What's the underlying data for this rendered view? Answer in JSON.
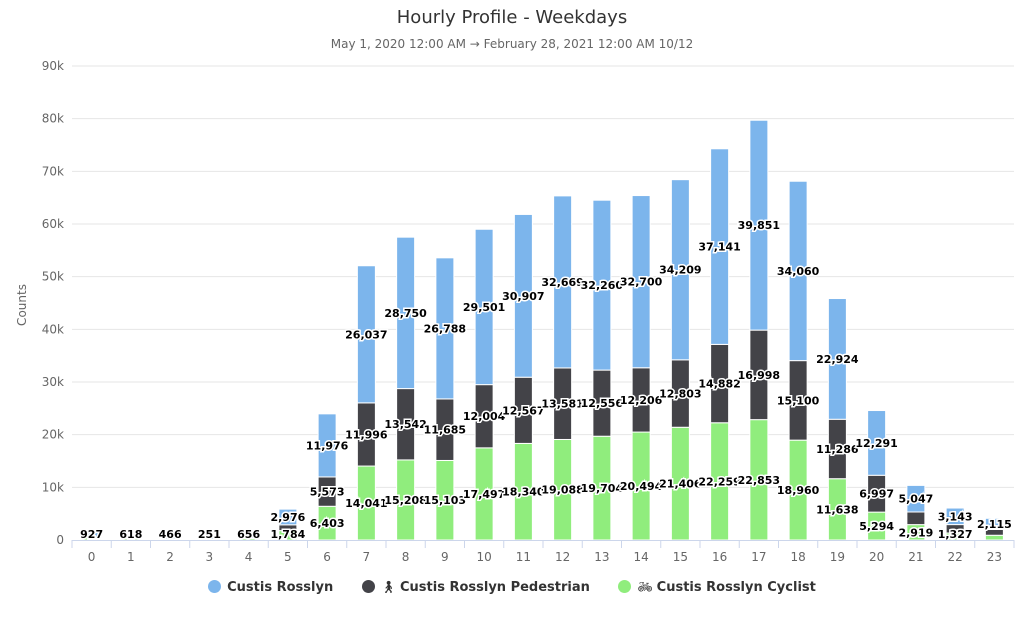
{
  "header": {
    "title": "Hourly Profile - Weekdays",
    "subtitle": "May 1, 2020 12:00 AM → February 28, 2021 12:00 AM 10/12"
  },
  "legend": [
    {
      "label": "Custis Rosslyn",
      "color": "#7cb5ec",
      "icon": ""
    },
    {
      "label": "Custis Rosslyn Pedestrian",
      "color": "#434348",
      "icon": "pedestrian-icon"
    },
    {
      "label": "Custis Rosslyn Cyclist",
      "color": "#90ed7d",
      "icon": "bicycle-icon"
    }
  ],
  "chart_data": {
    "type": "bar",
    "stacked": true,
    "title": "Hourly Profile - Weekdays",
    "subtitle": "May 1, 2020 12:00 AM → February 28, 2021 12:00 AM 10/12",
    "xlabel": "",
    "ylabel": "Counts",
    "ylim": [
      0,
      90000
    ],
    "yticks": [
      "0",
      "10k",
      "20k",
      "30k",
      "40k",
      "50k",
      "60k",
      "70k",
      "80k",
      "90k"
    ],
    "grid": true,
    "legend_position": "bottom",
    "categories": [
      "0",
      "1",
      "2",
      "3",
      "4",
      "5",
      "6",
      "7",
      "8",
      "9",
      "10",
      "11",
      "12",
      "13",
      "14",
      "15",
      "16",
      "17",
      "18",
      "19",
      "20",
      "21",
      "22",
      "23"
    ],
    "series": [
      {
        "name": "Custis Rosslyn Cyclist",
        "color": "#90ed7d",
        "values": [
          400,
          280,
          200,
          110,
          300,
          1784,
          6403,
          14041,
          15208,
          15103,
          17497,
          18340,
          19088,
          19704,
          20494,
          21406,
          22259,
          22853,
          18960,
          11638,
          5294,
          2919,
          1327,
          900
        ],
        "labels": [
          "",
          "",
          "",
          "",
          "",
          "1,784",
          "6,403",
          "14,041",
          "15,208",
          "15,103",
          "17,497",
          "18,340",
          "19,088",
          "19,704",
          "20,494",
          "21,406",
          "22,259",
          "22,853",
          "18,960",
          "11,638",
          "5,294",
          "2,919",
          "1,327",
          ""
        ]
      },
      {
        "name": "Custis Rosslyn Pedestrian",
        "color": "#434348",
        "values": [
          60,
          30,
          30,
          15,
          30,
          1100,
          5573,
          11996,
          13542,
          11685,
          12004,
          12567,
          13581,
          12556,
          12206,
          12803,
          14882,
          16998,
          15100,
          11286,
          6997,
          2400,
          1600,
          1100
        ],
        "labels": [
          "",
          "",
          "",
          "",
          "",
          "",
          "5,573",
          "11,996",
          "13,542",
          "11,685",
          "12,004",
          "12,567",
          "13,581",
          "12,556",
          "12,206",
          "12,803",
          "14,882",
          "16,998",
          "15,100",
          "11,286",
          "6,997",
          "",
          "",
          ""
        ]
      },
      {
        "name": "Custis Rosslyn",
        "color": "#7cb5ec",
        "values": [
          927,
          618,
          466,
          251,
          656,
          2976,
          11976,
          26037,
          28750,
          26788,
          29501,
          30907,
          32669,
          32260,
          32700,
          34209,
          37141,
          39851,
          34060,
          22924,
          12291,
          5047,
          3143,
          2115
        ],
        "labels": [
          "927",
          "618",
          "466",
          "251",
          "656",
          "2,976",
          "11,976",
          "26,037",
          "28,750",
          "26,788",
          "29,501",
          "30,907",
          "32,669",
          "32,260",
          "32,700",
          "34,209",
          "37,141",
          "39,851",
          "34,060",
          "22,924",
          "12,291",
          "5,047",
          "3,143",
          "2,115"
        ]
      }
    ]
  }
}
